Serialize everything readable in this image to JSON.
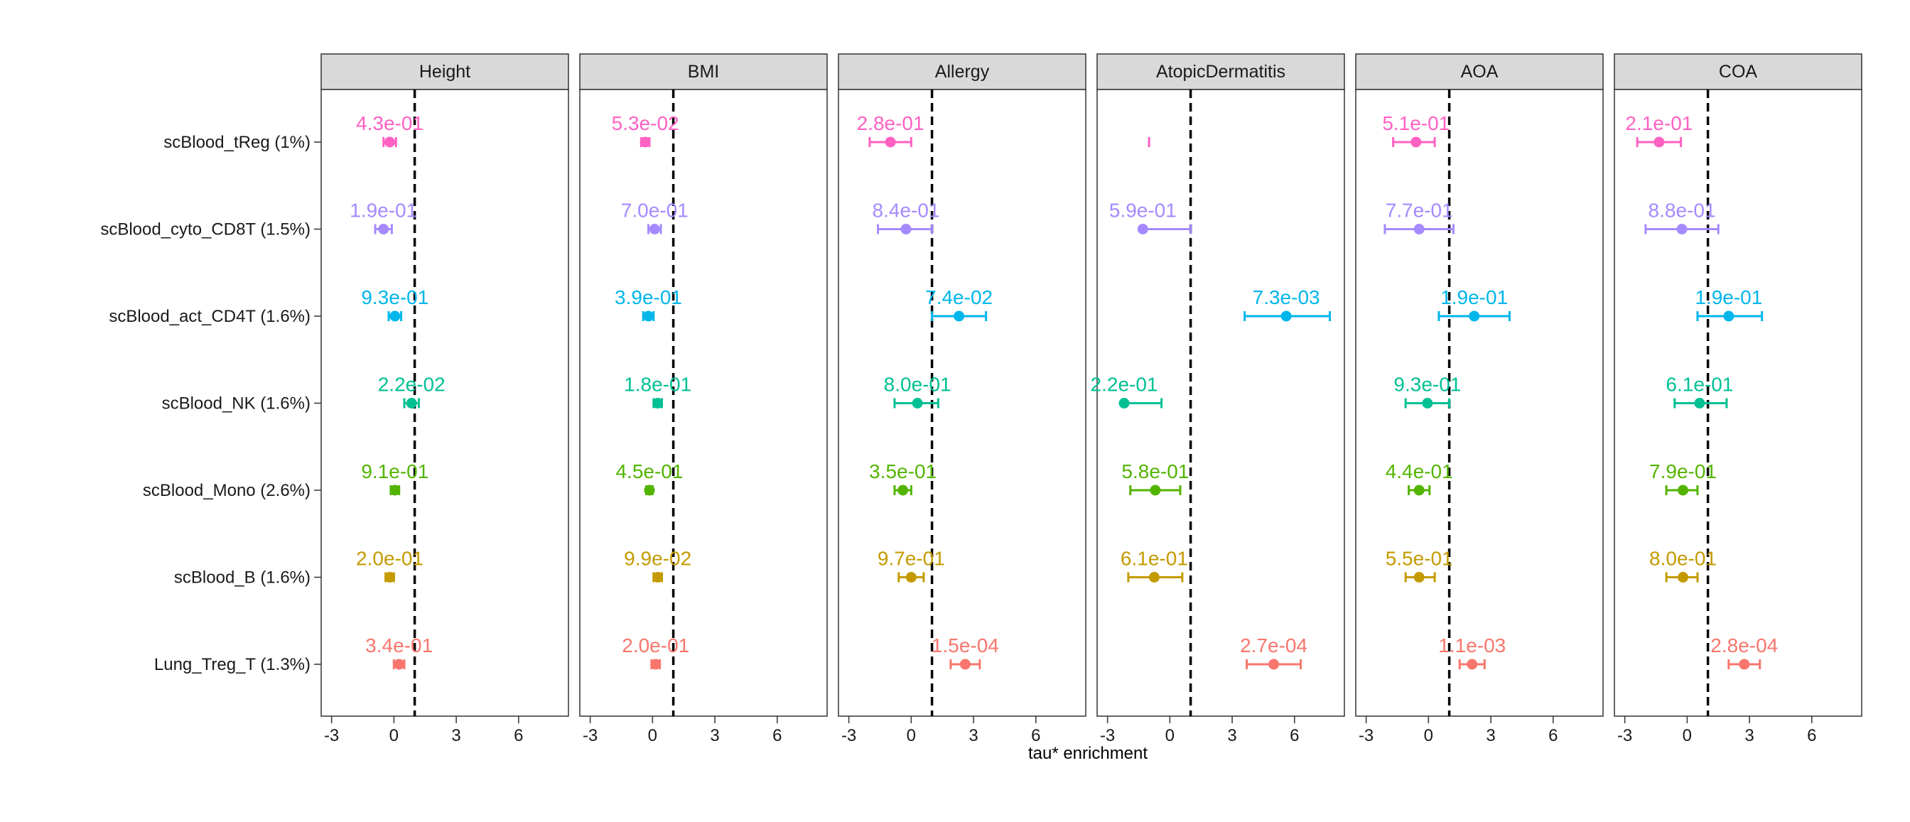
{
  "chart_data": {
    "type": "scatter",
    "subtype": "faceted forest plot (point estimate with error bars)",
    "xlabel": "tau* enrichment",
    "ylabel": "",
    "xlim": [
      -3.5,
      8.4
    ],
    "x_ticks": [
      -3,
      0,
      3,
      6
    ],
    "x_tick_labels": [
      "-3",
      "0",
      "3",
      "6"
    ],
    "reference_line_x": 1,
    "categories": [
      "scBlood_tReg (1%)",
      "scBlood_cyto_CD8T (1.5%)",
      "scBlood_act_CD4T (1.6%)",
      "scBlood_NK (1.6%)",
      "scBlood_Mono (2.6%)",
      "scBlood_B (1.6%)",
      "Lung_Treg_T (1.3%)"
    ],
    "category_colors": [
      "#ff61c3",
      "#a58aff",
      "#00b6eb",
      "#00c094",
      "#53b400",
      "#c49a00",
      "#f8766d"
    ],
    "facets": [
      {
        "title": "Height",
        "points": [
          {
            "est": -0.2,
            "lo": -0.5,
            "hi": 0.1,
            "label": "4.3e-01"
          },
          {
            "est": -0.5,
            "lo": -0.9,
            "hi": -0.1,
            "label": "1.9e-01"
          },
          {
            "est": 0.05,
            "lo": -0.25,
            "hi": 0.35,
            "label": "9.3e-01"
          },
          {
            "est": 0.85,
            "lo": 0.5,
            "hi": 1.2,
            "label": "2.2e-02"
          },
          {
            "est": 0.05,
            "lo": -0.15,
            "hi": 0.25,
            "label": "9.1e-01"
          },
          {
            "est": -0.2,
            "lo": -0.4,
            "hi": 0.0,
            "label": "2.0e-01"
          },
          {
            "est": 0.25,
            "lo": 0.0,
            "hi": 0.5,
            "label": "3.4e-01"
          }
        ]
      },
      {
        "title": "BMI",
        "points": [
          {
            "est": -0.35,
            "lo": -0.55,
            "hi": -0.15,
            "label": "5.3e-02"
          },
          {
            "est": 0.1,
            "lo": -0.2,
            "hi": 0.4,
            "label": "7.0e-01"
          },
          {
            "est": -0.2,
            "lo": -0.45,
            "hi": 0.05,
            "label": "3.9e-01"
          },
          {
            "est": 0.25,
            "lo": 0.05,
            "hi": 0.45,
            "label": "1.8e-01"
          },
          {
            "est": -0.15,
            "lo": -0.3,
            "hi": 0.0,
            "label": "4.5e-01"
          },
          {
            "est": 0.25,
            "lo": 0.05,
            "hi": 0.45,
            "label": "9.9e-02"
          },
          {
            "est": 0.15,
            "lo": -0.05,
            "hi": 0.35,
            "label": "2.0e-01"
          }
        ]
      },
      {
        "title": "Allergy",
        "points": [
          {
            "est": -1.0,
            "lo": -2.0,
            "hi": 0.0,
            "label": "2.8e-01"
          },
          {
            "est": -0.25,
            "lo": -1.6,
            "hi": 1.0,
            "label": "8.4e-01"
          },
          {
            "est": 2.3,
            "lo": 1.0,
            "hi": 3.6,
            "label": "7.4e-02"
          },
          {
            "est": 0.3,
            "lo": -0.8,
            "hi": 1.3,
            "label": "8.0e-01"
          },
          {
            "est": -0.4,
            "lo": -0.8,
            "hi": 0.0,
            "label": "3.5e-01"
          },
          {
            "est": 0.0,
            "lo": -0.6,
            "hi": 0.6,
            "label": "9.7e-01"
          },
          {
            "est": 2.6,
            "lo": 1.9,
            "hi": 3.3,
            "label": "1.5e-04"
          }
        ]
      },
      {
        "title": "AtopicDermatitis",
        "points": [
          {
            "est": null,
            "lo": -1.0,
            "hi": -1.0,
            "label": ""
          },
          {
            "est": -1.3,
            "lo": null,
            "hi": 1.0,
            "label": "5.9e-01"
          },
          {
            "est": 5.6,
            "lo": 3.6,
            "hi": 7.7,
            "label": "7.3e-03"
          },
          {
            "est": -2.2,
            "lo": null,
            "hi": -0.4,
            "label": "2.2e-01"
          },
          {
            "est": -0.7,
            "lo": -1.9,
            "hi": 0.5,
            "label": "5.8e-01"
          },
          {
            "est": -0.75,
            "lo": -2.0,
            "hi": 0.6,
            "label": "6.1e-01"
          },
          {
            "est": 5.0,
            "lo": 3.7,
            "hi": 6.3,
            "label": "2.7e-04"
          }
        ]
      },
      {
        "title": "AOA",
        "points": [
          {
            "est": -0.6,
            "lo": -1.7,
            "hi": 0.3,
            "label": "5.1e-01"
          },
          {
            "est": -0.45,
            "lo": -2.1,
            "hi": 1.2,
            "label": "7.7e-01"
          },
          {
            "est": 2.2,
            "lo": 0.5,
            "hi": 3.9,
            "label": "1.9e-01"
          },
          {
            "est": -0.05,
            "lo": -1.1,
            "hi": 1.0,
            "label": "9.3e-01"
          },
          {
            "est": -0.45,
            "lo": -0.95,
            "hi": 0.05,
            "label": "4.4e-01"
          },
          {
            "est": -0.45,
            "lo": -1.1,
            "hi": 0.3,
            "label": "5.5e-01"
          },
          {
            "est": 2.1,
            "lo": 1.5,
            "hi": 2.7,
            "label": "1.1e-03"
          }
        ]
      },
      {
        "title": "COA",
        "points": [
          {
            "est": -1.35,
            "lo": -2.4,
            "hi": -0.3,
            "label": "2.1e-01"
          },
          {
            "est": -0.25,
            "lo": -2.0,
            "hi": 1.5,
            "label": "8.8e-01"
          },
          {
            "est": 2.0,
            "lo": 0.5,
            "hi": 3.6,
            "label": "1.9e-01"
          },
          {
            "est": 0.6,
            "lo": -0.6,
            "hi": 1.9,
            "label": "6.1e-01"
          },
          {
            "est": -0.2,
            "lo": -1.0,
            "hi": 0.5,
            "label": "7.9e-01"
          },
          {
            "est": -0.2,
            "lo": -1.0,
            "hi": 0.5,
            "label": "8.0e-01"
          },
          {
            "est": 2.75,
            "lo": 2.0,
            "hi": 3.5,
            "label": "2.8e-04"
          }
        ]
      }
    ]
  }
}
